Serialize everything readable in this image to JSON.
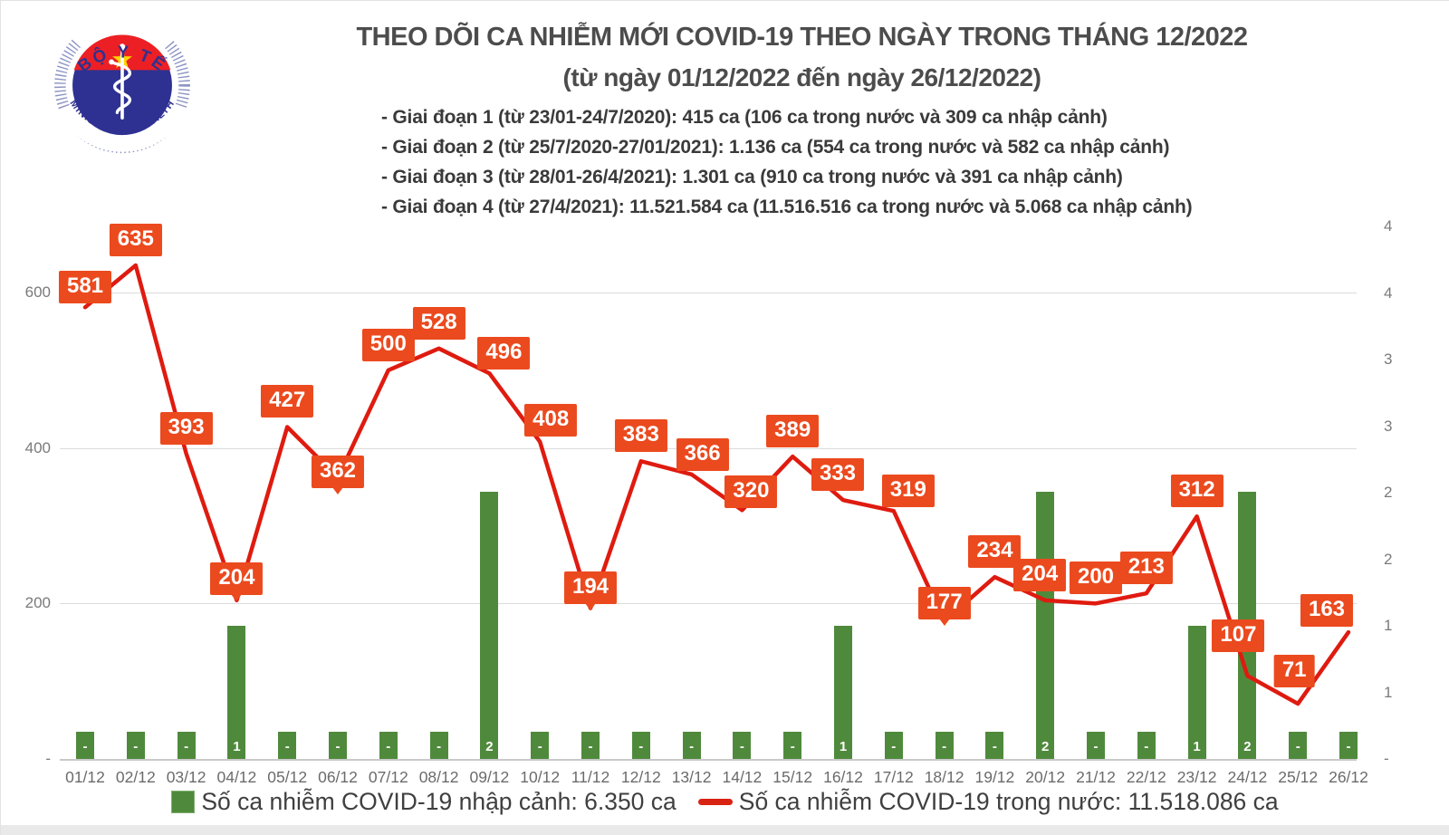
{
  "header": {
    "logo": {
      "top_text": "BỘ Y TẾ",
      "bottom_text": "MINISTRY OF HEALTH"
    },
    "title": "THEO DÕI CA NHIỄM MỚI COVID-19 THEO NGÀY TRONG THÁNG 12/2022",
    "subtitle": "(từ ngày 01/12/2022 đến ngày 26/12/2022)",
    "phase_notes": [
      "- Giai đoạn 1 (từ 23/01-24/7/2020): 415 ca (106 ca trong nước và 309 ca nhập cảnh)",
      "- Giai đoạn 2 (từ 25/7/2020-27/01/2021): 1.136 ca (554 ca trong nước và 582 ca nhập cảnh)",
      "- Giai đoạn 3 (từ 28/01-26/4/2021): 1.301 ca (910 ca trong nước và 391 ca nhập cảnh)",
      "- Giai đoạn 4 (từ 27/4/2021): 11.521.584 ca (11.516.516 ca trong nước và 5.068 ca nhập cảnh)"
    ]
  },
  "chart_data": {
    "type": "combo",
    "categories": [
      "01/12",
      "02/12",
      "03/12",
      "04/12",
      "05/12",
      "06/12",
      "07/12",
      "08/12",
      "09/12",
      "10/12",
      "11/12",
      "12/12",
      "13/12",
      "14/12",
      "15/12",
      "16/12",
      "17/12",
      "18/12",
      "19/12",
      "20/12",
      "21/12",
      "22/12",
      "23/12",
      "24/12",
      "25/12",
      "26/12"
    ],
    "series": [
      {
        "name": "Số ca nhiễm COVID-19 nhập cảnh",
        "type": "bar",
        "axis": "right",
        "color": "#4f8a3c",
        "values": [
          0,
          0,
          0,
          1,
          0,
          0,
          0,
          0,
          2,
          0,
          0,
          0,
          0,
          0,
          0,
          1,
          0,
          0,
          0,
          2,
          0,
          0,
          1,
          2,
          0,
          0
        ],
        "labels": [
          "-",
          "-",
          "-",
          "1",
          "-",
          "-",
          "-",
          "-",
          "2",
          "-",
          "-",
          "-",
          "-",
          "-",
          "-",
          "1",
          "-",
          "-",
          "-",
          "2",
          "-",
          "-",
          "1",
          "2",
          "-",
          "-"
        ]
      },
      {
        "name": "Số ca nhiễm COVID-19 trong nước",
        "type": "line",
        "axis": "left",
        "color": "#df1b10",
        "label_bg": "#eb4a1e",
        "values": [
          581,
          635,
          393,
          204,
          427,
          362,
          500,
          528,
          496,
          408,
          194,
          383,
          366,
          320,
          389,
          333,
          319,
          177,
          234,
          204,
          200,
          213,
          312,
          107,
          71,
          163
        ]
      }
    ],
    "left_axis": {
      "range": [
        0,
        700
      ],
      "tick_labels_top_to_bottom": [
        "600",
        "400",
        "200",
        "-"
      ]
    },
    "right_axis": {
      "range": [
        0,
        4
      ],
      "tick_labels_top_to_bottom": [
        "4",
        "4",
        "3",
        "3",
        "2",
        "2",
        "1",
        "1",
        "-"
      ]
    },
    "gridlines": "horizontal"
  },
  "legend": {
    "items": [
      {
        "swatch": "bar-square",
        "color": "#4f8a3c",
        "label": "Số ca nhiễm COVID-19 nhập cảnh: 6.350 ca"
      },
      {
        "swatch": "line-dash",
        "color": "#d92313",
        "label": "Số ca nhiễm COVID-19 trong nước: 11.518.086 ca"
      }
    ]
  }
}
